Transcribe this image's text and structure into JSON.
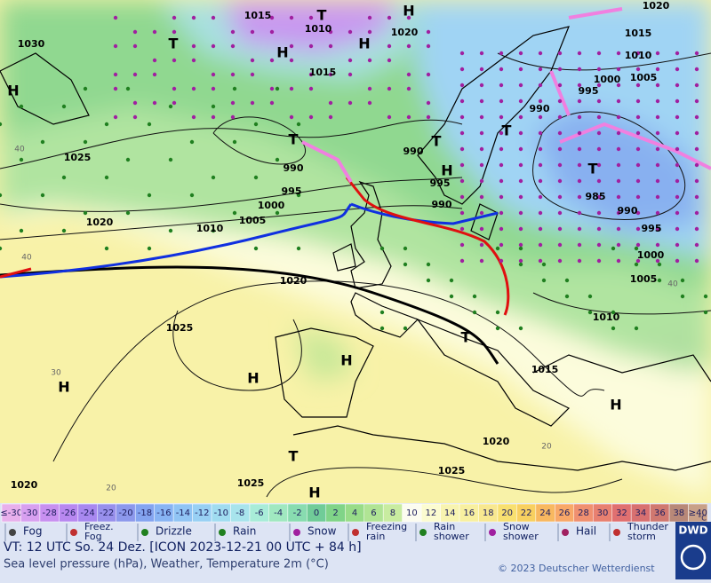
{
  "map_labels": [
    "1015",
    "1010",
    "1020",
    "1020",
    "1015",
    "1010",
    "1030",
    "1015",
    "1000",
    "1005",
    "995",
    "990",
    "1025",
    "990",
    "990",
    "995",
    "995",
    "1000",
    "990",
    "1005",
    "1010",
    "1020",
    "985",
    "990",
    "995",
    "1000",
    "1005",
    "1010",
    "1020",
    "1025",
    "1015",
    "1020",
    "1025",
    "1025",
    "1020",
    "H",
    "T",
    "H",
    "T",
    "H",
    "H",
    "T",
    "T",
    "T",
    "H",
    "T",
    "H",
    "H",
    "H",
    "T",
    "H",
    "T",
    "H",
    "40",
    "30",
    "20",
    "40",
    "20",
    "40"
  ],
  "temperature_scale": {
    "labels": [
      "≤-30",
      -30,
      -28,
      -26,
      -24,
      -22,
      -20,
      -18,
      -16,
      -14,
      -12,
      -10,
      -8,
      -6,
      -4,
      -2,
      0,
      2,
      4,
      6,
      8,
      10,
      12,
      14,
      16,
      18,
      20,
      22,
      24,
      26,
      28,
      30,
      32,
      34,
      36,
      38,
      "≥40"
    ],
    "unit": "°C",
    "colors": [
      "#e8b0ec",
      "#d8a0f0",
      "#c890f0",
      "#b888f0",
      "#a888f0",
      "#9890ec",
      "#8c98ec",
      "#84a4f0",
      "#88b4f4",
      "#90c4f4",
      "#98d0f4",
      "#a0dcf0",
      "#a8e4ec",
      "#a8ecd8",
      "#a0e8c0",
      "#88dcb0",
      "#70cc98",
      "#80d488",
      "#98dc88",
      "#b0e494",
      "#c8eca0",
      "#fcfcf0",
      "#fcfcd0",
      "#f8f4b0",
      "#f8f0a0",
      "#f8e890",
      "#f8e070",
      "#f8d060",
      "#f8b860",
      "#f8a868",
      "#f09070",
      "#e88070",
      "#e07070",
      "#d87070",
      "#d07870",
      "#b88878",
      "#c8a088"
    ]
  },
  "legend": [
    "Fog",
    "Freez. Fog",
    "Drizzle",
    "Rain",
    "Snow",
    "Freezing rain",
    "Rain shower",
    "Snow shower",
    "Hail",
    "Thunder storm"
  ],
  "footer": {
    "valid_time": "VT: 12 UTC So.  24 Dez. [ICON 2023-12-21  00 UTC + 84 h]",
    "description": "Sea level pressure (hPa), Weather, Temperature 2m (°C)",
    "copyright": "© 2023 Deutscher Wetterdienst",
    "logo": "DWD"
  }
}
